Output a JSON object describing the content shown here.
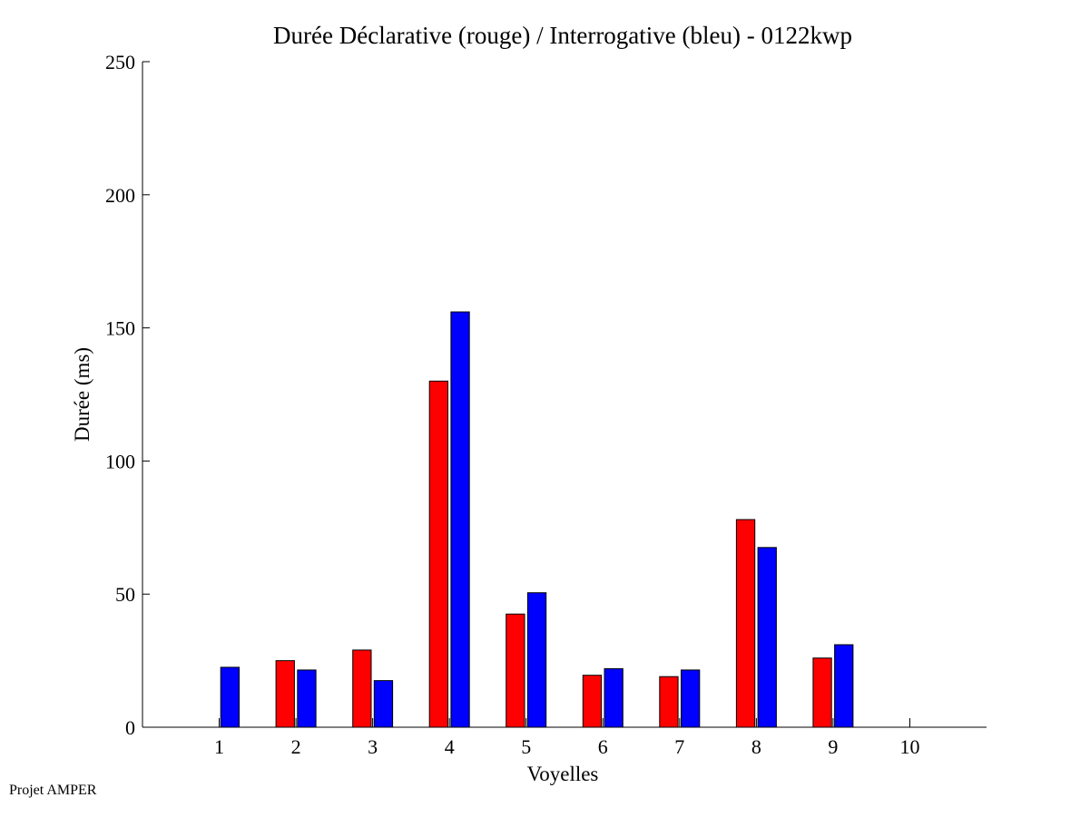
{
  "chart_data": {
    "type": "bar",
    "title": "Durée Déclarative (rouge) / Interrogative (bleu) - 0122kwp",
    "xlabel": "Voyelles",
    "ylabel": "Durée (ms)",
    "categories": [
      "1",
      "2",
      "3",
      "4",
      "5",
      "6",
      "7",
      "8",
      "9",
      "10"
    ],
    "xlim": [
      0,
      11
    ],
    "ylim": [
      0,
      250
    ],
    "yticks": [
      0,
      50,
      100,
      150,
      200,
      250
    ],
    "grid": false,
    "legend": "none",
    "series": [
      {
        "color": "#ff0000",
        "values": [
          null,
          25,
          29,
          130,
          42.5,
          19.5,
          19,
          78,
          26,
          null
        ]
      },
      {
        "color": "#0000ff",
        "values": [
          22.5,
          21.5,
          17.5,
          156,
          50.5,
          22,
          21.5,
          67.5,
          31,
          null
        ]
      }
    ]
  },
  "footer": {
    "note": "Projet AMPER"
  }
}
